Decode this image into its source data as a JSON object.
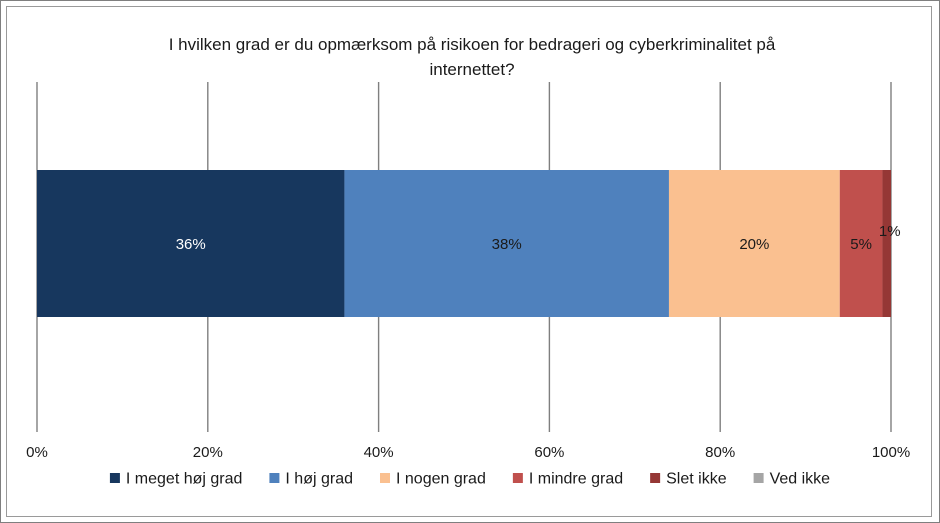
{
  "chart_data": {
    "type": "bar",
    "orientation": "horizontal",
    "stacked": true,
    "title_lines": [
      "I hvilken grad er du opmærksom på risikoen for bedrageri og cyberkriminalitet på",
      "internettet?"
    ],
    "xlim": [
      0,
      100
    ],
    "x_ticks": [
      "0%",
      "20%",
      "40%",
      "60%",
      "80%",
      "100%"
    ],
    "grid": "vertical",
    "legend_position": "bottom",
    "series": [
      {
        "name": "I meget høj grad",
        "value": 36,
        "label": "36%",
        "color": "#17375e",
        "label_color": "#ffffff"
      },
      {
        "name": "I høj grad",
        "value": 38,
        "label": "38%",
        "color": "#4f81bd",
        "label_color": "#1a1a1a"
      },
      {
        "name": "I nogen grad",
        "value": 20,
        "label": "20%",
        "color": "#fac090",
        "label_color": "#1a1a1a"
      },
      {
        "name": "I mindre grad",
        "value": 5,
        "label": "5%",
        "color": "#c0504d",
        "label_color": "#1a1a1a"
      },
      {
        "name": "Slet ikke",
        "value": 1,
        "label": "1%",
        "color": "#953735",
        "label_color": "#1a1a1a"
      },
      {
        "name": "Ved ikke",
        "value": 0,
        "label": "",
        "color": "#a5a5a5",
        "label_color": "#1a1a1a"
      }
    ]
  }
}
